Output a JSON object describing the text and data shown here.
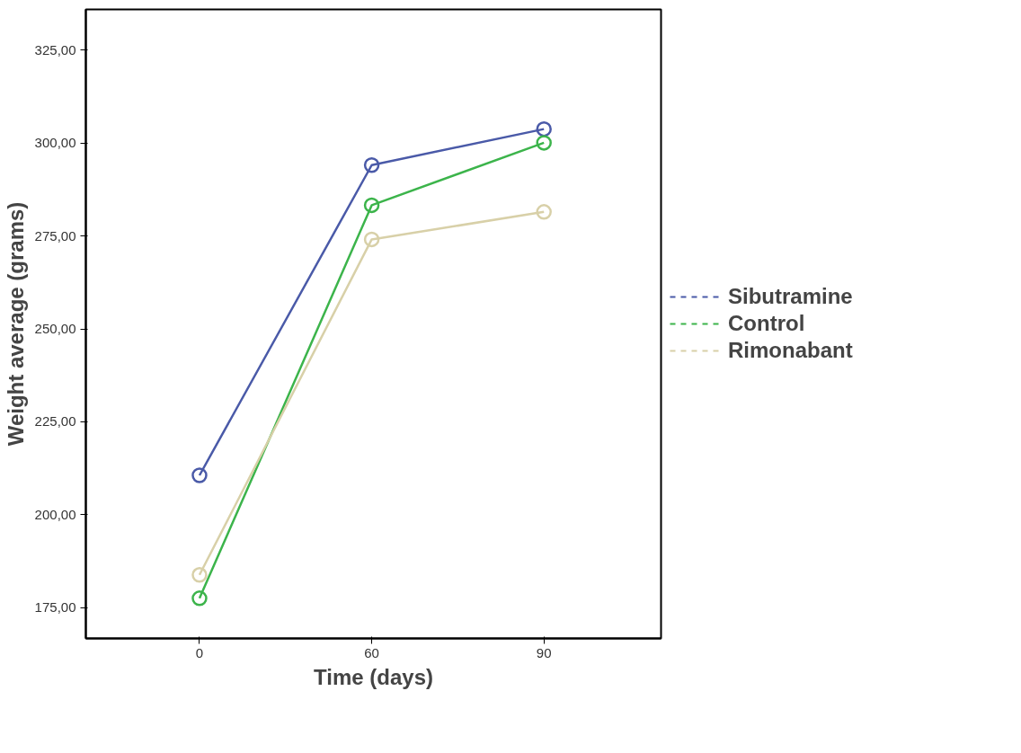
{
  "chart_data": {
    "type": "line",
    "xlabel": "Time (days)",
    "ylabel": "Weight average (grams)",
    "categories": [
      "0",
      "60",
      "90"
    ],
    "series": [
      {
        "name": "Sibutramine",
        "color": "#4a5aa8",
        "values": [
          210.6,
          294.1,
          303.8
        ]
      },
      {
        "name": "Control",
        "color": "#3cb44b",
        "values": [
          177.5,
          283.3,
          300.1
        ]
      },
      {
        "name": "Rimonabant",
        "color": "#d8d0a8",
        "values": [
          183.8,
          274.1,
          281.5
        ]
      }
    ],
    "ylim": [
      166.7,
      336
    ],
    "yticks": [
      {
        "value": 175,
        "label": "175,00"
      },
      {
        "value": 200,
        "label": "200,00"
      },
      {
        "value": 225,
        "label": "225,00"
      },
      {
        "value": 250,
        "label": "250,00"
      },
      {
        "value": 275,
        "label": "275,00"
      },
      {
        "value": 300,
        "label": "300,00"
      },
      {
        "value": 325,
        "label": "325,00"
      }
    ],
    "marker": "circle",
    "line_style": "solid",
    "legend": "right",
    "grid": false
  }
}
